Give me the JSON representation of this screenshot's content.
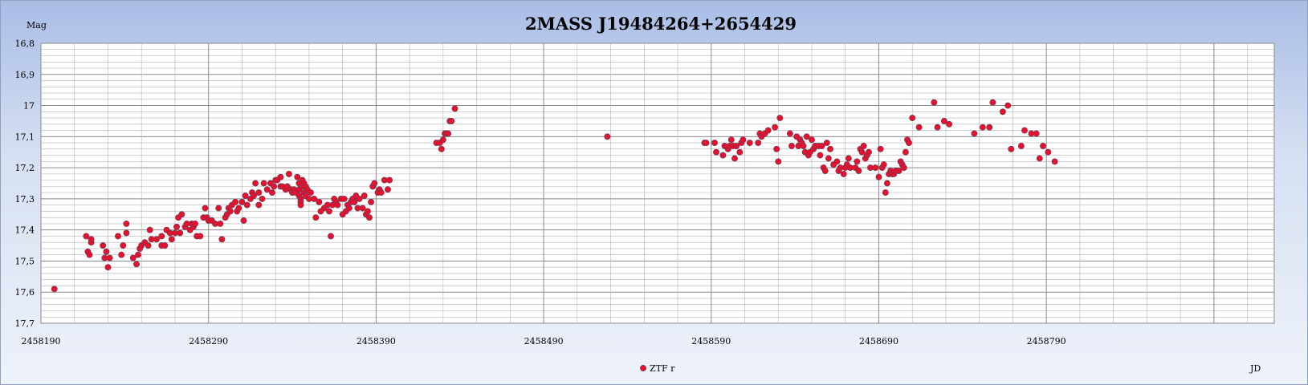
{
  "chart_data": {
    "type": "scatter",
    "title": "2MASS J19484264+2654429",
    "ylabel": "Mag",
    "xlabel": "JD",
    "ylim": [
      16.8,
      17.7
    ],
    "y_inverted": true,
    "xlim": [
      2458190,
      2458926
    ],
    "y_ticks": [
      "16,8",
      "16,9",
      "17",
      "17,1",
      "17,2",
      "17,3",
      "17,4",
      "17,5",
      "17,6",
      "17,7"
    ],
    "x_ticks": [
      "2458190",
      "2458290",
      "2458390",
      "2458490",
      "2458590",
      "2458690",
      "2458790"
    ],
    "grid": true,
    "legend_position": "bottom",
    "marker_color": "#e8102a",
    "series": [
      {
        "name": "ZTF r",
        "points": [
          [
            2458198,
            17.59
          ],
          [
            2458217,
            17.42
          ],
          [
            2458218,
            17.47
          ],
          [
            2458219,
            17.48
          ],
          [
            2458220,
            17.44
          ],
          [
            2458220,
            17.43
          ],
          [
            2458227,
            17.45
          ],
          [
            2458228,
            17.49
          ],
          [
            2458229,
            17.47
          ],
          [
            2458230,
            17.52
          ],
          [
            2458231,
            17.49
          ],
          [
            2458236,
            17.42
          ],
          [
            2458238,
            17.48
          ],
          [
            2458239,
            17.45
          ],
          [
            2458241,
            17.38
          ],
          [
            2458241,
            17.41
          ],
          [
            2458245,
            17.49
          ],
          [
            2458247,
            17.51
          ],
          [
            2458248,
            17.48
          ],
          [
            2458249,
            17.46
          ],
          [
            2458250,
            17.45
          ],
          [
            2458252,
            17.44
          ],
          [
            2458254,
            17.45
          ],
          [
            2458255,
            17.4
          ],
          [
            2458256,
            17.43
          ],
          [
            2458259,
            17.43
          ],
          [
            2458262,
            17.42
          ],
          [
            2458262,
            17.45
          ],
          [
            2458264,
            17.45
          ],
          [
            2458265,
            17.4
          ],
          [
            2458267,
            17.41
          ],
          [
            2458268,
            17.43
          ],
          [
            2458270,
            17.41
          ],
          [
            2458271,
            17.39
          ],
          [
            2458272,
            17.36
          ],
          [
            2458273,
            17.41
          ],
          [
            2458274,
            17.35
          ],
          [
            2458276,
            17.39
          ],
          [
            2458277,
            17.38
          ],
          [
            2458279,
            17.4
          ],
          [
            2458280,
            17.38
          ],
          [
            2458281,
            17.39
          ],
          [
            2458282,
            17.38
          ],
          [
            2458283,
            17.42
          ],
          [
            2458285,
            17.42
          ],
          [
            2458287,
            17.36
          ],
          [
            2458288,
            17.33
          ],
          [
            2458289,
            17.36
          ],
          [
            2458290,
            17.37
          ],
          [
            2458292,
            17.37
          ],
          [
            2458294,
            17.38
          ],
          [
            2458296,
            17.33
          ],
          [
            2458297,
            17.38
          ],
          [
            2458298,
            17.43
          ],
          [
            2458300,
            17.36
          ],
          [
            2458301,
            17.35
          ],
          [
            2458302,
            17.33
          ],
          [
            2458303,
            17.34
          ],
          [
            2458304,
            17.32
          ],
          [
            2458306,
            17.31
          ],
          [
            2458307,
            17.34
          ],
          [
            2458308,
            17.33
          ],
          [
            2458310,
            17.31
          ],
          [
            2458311,
            17.37
          ],
          [
            2458312,
            17.29
          ],
          [
            2458313,
            17.32
          ],
          [
            2458315,
            17.3
          ],
          [
            2458316,
            17.28
          ],
          [
            2458317,
            17.29
          ],
          [
            2458318,
            17.25
          ],
          [
            2458320,
            17.28
          ],
          [
            2458320,
            17.32
          ],
          [
            2458322,
            17.3
          ],
          [
            2458323,
            17.25
          ],
          [
            2458325,
            17.27
          ],
          [
            2458327,
            17.25
          ],
          [
            2458328,
            17.28
          ],
          [
            2458329,
            17.26
          ],
          [
            2458330,
            17.24
          ],
          [
            2458331,
            17.24
          ],
          [
            2458333,
            17.26
          ],
          [
            2458333,
            17.23
          ],
          [
            2458334,
            17.26
          ],
          [
            2458336,
            17.27
          ],
          [
            2458337,
            17.26
          ],
          [
            2458338,
            17.22
          ],
          [
            2458339,
            17.27
          ],
          [
            2458340,
            17.28
          ],
          [
            2458341,
            17.27
          ],
          [
            2458342,
            17.28
          ],
          [
            2458343,
            17.23
          ],
          [
            2458344,
            17.25
          ],
          [
            2458344,
            17.27
          ],
          [
            2458344,
            17.29
          ],
          [
            2458345,
            17.3
          ],
          [
            2458345,
            17.31
          ],
          [
            2458345,
            17.32
          ],
          [
            2458346,
            17.24
          ],
          [
            2458346,
            17.26
          ],
          [
            2458347,
            17.25
          ],
          [
            2458347,
            17.28
          ],
          [
            2458348,
            17.26
          ],
          [
            2458348,
            17.29
          ],
          [
            2458349,
            17.27
          ],
          [
            2458350,
            17.3
          ],
          [
            2458351,
            17.28
          ],
          [
            2458353,
            17.3
          ],
          [
            2458354,
            17.36
          ],
          [
            2458356,
            17.31
          ],
          [
            2458357,
            17.34
          ],
          [
            2458359,
            17.33
          ],
          [
            2458361,
            17.32
          ],
          [
            2458362,
            17.34
          ],
          [
            2458363,
            17.42
          ],
          [
            2458364,
            17.32
          ],
          [
            2458365,
            17.3
          ],
          [
            2458366,
            17.31
          ],
          [
            2458367,
            17.32
          ],
          [
            2458369,
            17.3
          ],
          [
            2458370,
            17.35
          ],
          [
            2458371,
            17.3
          ],
          [
            2458372,
            17.34
          ],
          [
            2458373,
            17.32
          ],
          [
            2458374,
            17.33
          ],
          [
            2458375,
            17.31
          ],
          [
            2458376,
            17.3
          ],
          [
            2458377,
            17.31
          ],
          [
            2458378,
            17.29
          ],
          [
            2458379,
            17.33
          ],
          [
            2458380,
            17.3
          ],
          [
            2458382,
            17.33
          ],
          [
            2458383,
            17.29
          ],
          [
            2458384,
            17.35
          ],
          [
            2458385,
            17.34
          ],
          [
            2458386,
            17.36
          ],
          [
            2458387,
            17.31
          ],
          [
            2458388,
            17.26
          ],
          [
            2458389,
            17.25
          ],
          [
            2458391,
            17.28
          ],
          [
            2458392,
            17.27
          ],
          [
            2458393,
            17.28
          ],
          [
            2458395,
            17.24
          ],
          [
            2458397,
            17.27
          ],
          [
            2458398,
            17.24
          ],
          [
            2458426,
            17.12
          ],
          [
            2458428,
            17.12
          ],
          [
            2458429,
            17.14
          ],
          [
            2458430,
            17.11
          ],
          [
            2458431,
            17.09
          ],
          [
            2458432,
            17.09
          ],
          [
            2458433,
            17.09
          ],
          [
            2458434,
            17.05
          ],
          [
            2458435,
            17.05
          ],
          [
            2458437,
            17.01
          ],
          [
            2458528,
            17.1
          ],
          [
            2458586,
            17.12
          ],
          [
            2458587,
            17.12
          ],
          [
            2458592,
            17.12
          ],
          [
            2458593,
            17.15
          ],
          [
            2458597,
            17.16
          ],
          [
            2458598,
            17.13
          ],
          [
            2458600,
            17.14
          ],
          [
            2458601,
            17.13
          ],
          [
            2458602,
            17.11
          ],
          [
            2458603,
            17.13
          ],
          [
            2458604,
            17.17
          ],
          [
            2458605,
            17.13
          ],
          [
            2458607,
            17.15
          ],
          [
            2458608,
            17.12
          ],
          [
            2458609,
            17.11
          ],
          [
            2458613,
            17.12
          ],
          [
            2458618,
            17.12
          ],
          [
            2458619,
            17.09
          ],
          [
            2458620,
            17.1
          ],
          [
            2458622,
            17.09
          ],
          [
            2458624,
            17.08
          ],
          [
            2458628,
            17.07
          ],
          [
            2458629,
            17.14
          ],
          [
            2458630,
            17.18
          ],
          [
            2458631,
            17.04
          ],
          [
            2458637,
            17.09
          ],
          [
            2458638,
            17.13
          ],
          [
            2458641,
            17.1
          ],
          [
            2458642,
            17.13
          ],
          [
            2458643,
            17.11
          ],
          [
            2458644,
            17.12
          ],
          [
            2458645,
            17.13
          ],
          [
            2458646,
            17.15
          ],
          [
            2458647,
            17.1
          ],
          [
            2458648,
            17.16
          ],
          [
            2458649,
            17.15
          ],
          [
            2458650,
            17.11
          ],
          [
            2458651,
            17.14
          ],
          [
            2458652,
            17.13
          ],
          [
            2458654,
            17.13
          ],
          [
            2458655,
            17.16
          ],
          [
            2458656,
            17.13
          ],
          [
            2458657,
            17.2
          ],
          [
            2458658,
            17.21
          ],
          [
            2458659,
            17.12
          ],
          [
            2458660,
            17.17
          ],
          [
            2458661,
            17.14
          ],
          [
            2458663,
            17.19
          ],
          [
            2458665,
            17.18
          ],
          [
            2458666,
            17.21
          ],
          [
            2458667,
            17.2
          ],
          [
            2458669,
            17.22
          ],
          [
            2458670,
            17.2
          ],
          [
            2458671,
            17.19
          ],
          [
            2458672,
            17.17
          ],
          [
            2458673,
            17.2
          ],
          [
            2458676,
            17.2
          ],
          [
            2458677,
            17.18
          ],
          [
            2458678,
            17.21
          ],
          [
            2458679,
            17.14
          ],
          [
            2458680,
            17.15
          ],
          [
            2458681,
            17.13
          ],
          [
            2458682,
            17.17
          ],
          [
            2458683,
            17.16
          ],
          [
            2458684,
            17.15
          ],
          [
            2458685,
            17.2
          ],
          [
            2458688,
            17.2
          ],
          [
            2458690,
            17.23
          ],
          [
            2458691,
            17.14
          ],
          [
            2458692,
            17.2
          ],
          [
            2458693,
            17.19
          ],
          [
            2458694,
            17.28
          ],
          [
            2458695,
            17.25
          ],
          [
            2458696,
            17.22
          ],
          [
            2458697,
            17.21
          ],
          [
            2458698,
            17.22
          ],
          [
            2458699,
            17.22
          ],
          [
            2458700,
            17.21
          ],
          [
            2458702,
            17.21
          ],
          [
            2458703,
            17.18
          ],
          [
            2458704,
            17.19
          ],
          [
            2458705,
            17.2
          ],
          [
            2458706,
            17.15
          ],
          [
            2458707,
            17.11
          ],
          [
            2458708,
            17.12
          ],
          [
            2458710,
            17.04
          ],
          [
            2458714,
            17.07
          ],
          [
            2458723,
            16.99
          ],
          [
            2458725,
            17.07
          ],
          [
            2458729,
            17.05
          ],
          [
            2458732,
            17.06
          ],
          [
            2458747,
            17.09
          ],
          [
            2458752,
            17.07
          ],
          [
            2458756,
            17.07
          ],
          [
            2458758,
            16.99
          ],
          [
            2458764,
            17.02
          ],
          [
            2458767,
            17.0
          ],
          [
            2458769,
            17.14
          ],
          [
            2458775,
            17.13
          ],
          [
            2458777,
            17.08
          ],
          [
            2458781,
            17.09
          ],
          [
            2458784,
            17.09
          ],
          [
            2458786,
            17.17
          ],
          [
            2458788,
            17.13
          ],
          [
            2458791,
            17.15
          ],
          [
            2458795,
            17.18
          ]
        ]
      }
    ]
  }
}
